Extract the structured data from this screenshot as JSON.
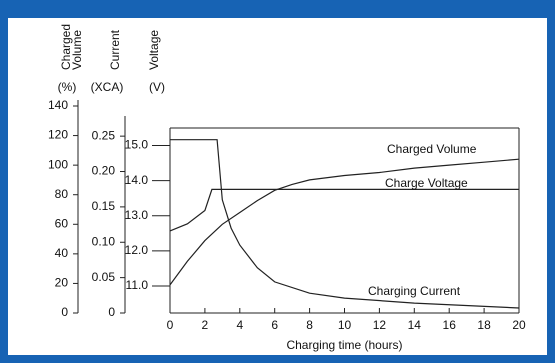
{
  "chart_data": {
    "type": "line",
    "xlabel": "Charging time (hours)",
    "xlim": [
      0,
      20
    ],
    "xticks": [
      0,
      2,
      4,
      6,
      8,
      10,
      12,
      14,
      16,
      18,
      20
    ],
    "ylabel": [
      "Charged",
      "Volume"
    ],
    "yunit": "(%)",
    "ylim": [
      0,
      140
    ],
    "yticks": [
      0,
      20,
      40,
      60,
      80,
      100,
      120,
      140
    ],
    "y2label": [
      "Current"
    ],
    "y2unit": "(XCA)",
    "y2lim": [
      0,
      0.27
    ],
    "y2ticks": [
      0,
      0.05,
      {
        "value": 0.1,
        "label": "0.10"
      },
      0.15,
      {
        "value": 0.2,
        "label": "0.20"
      },
      0.25
    ],
    "y3label": [
      "Voltage"
    ],
    "y3unit": "(V)",
    "y3lim": [
      10.23,
      15.5
    ],
    "y3ticks": [
      {
        "value": 11,
        "label": "11.0"
      },
      {
        "value": 12,
        "label": "12.0"
      },
      {
        "value": 13,
        "label": "13.0"
      },
      {
        "value": 14,
        "label": "14.0"
      },
      {
        "value": 15,
        "label": "15.0"
      }
    ],
    "series": [
      {
        "name": "Charged Volume",
        "axis": "y",
        "color": "#222",
        "x": [
          0,
          1,
          2,
          3,
          4,
          5,
          6,
          7,
          8,
          10,
          12,
          14,
          16,
          18,
          20
        ],
        "values": [
          19,
          35,
          49,
          60,
          68,
          76,
          83,
          87,
          90,
          93,
          95,
          98,
          100,
          102,
          104
        ]
      },
      {
        "name": "Charge Voltage",
        "axis": "y3",
        "color": "#222",
        "x": [
          0,
          1,
          2,
          2.4,
          20
        ],
        "values": [
          12.57,
          12.77,
          13.15,
          13.75,
          13.75
        ]
      },
      {
        "name": "Charging Current",
        "axis": "y2",
        "color": "#222",
        "x": [
          0,
          2.7,
          3,
          3.5,
          4,
          5,
          6,
          8,
          10,
          14,
          20
        ],
        "values": [
          0.245,
          0.245,
          0.16,
          0.12,
          0.096,
          0.064,
          0.044,
          0.028,
          0.021,
          0.014,
          0.007
        ]
      }
    ]
  }
}
